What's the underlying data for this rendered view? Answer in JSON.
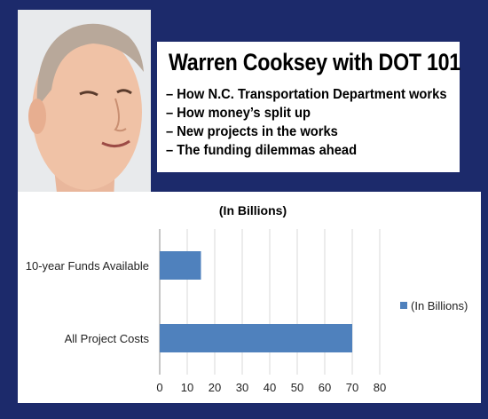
{
  "headline": "Warren Cooksey with DOT 101",
  "bullets": [
    "– How N.C. Transportation Department works",
    "– How money’s split up",
    "– New projects in the works",
    "– The funding dilemmas ahead"
  ],
  "colors": {
    "background": "#1c2a6b",
    "bar": "#4f81bd"
  },
  "chart_data": {
    "type": "bar",
    "orientation": "horizontal",
    "title": "(In Billions)",
    "categories": [
      "10-year Funds Available",
      "All Project Costs"
    ],
    "series": [
      {
        "name": "(In Billions)",
        "values": [
          15,
          70
        ]
      }
    ],
    "xlim": [
      0,
      80
    ],
    "xticks": [
      0,
      10,
      20,
      30,
      40,
      50,
      60,
      70,
      80
    ],
    "grid": true,
    "legend": "right"
  }
}
